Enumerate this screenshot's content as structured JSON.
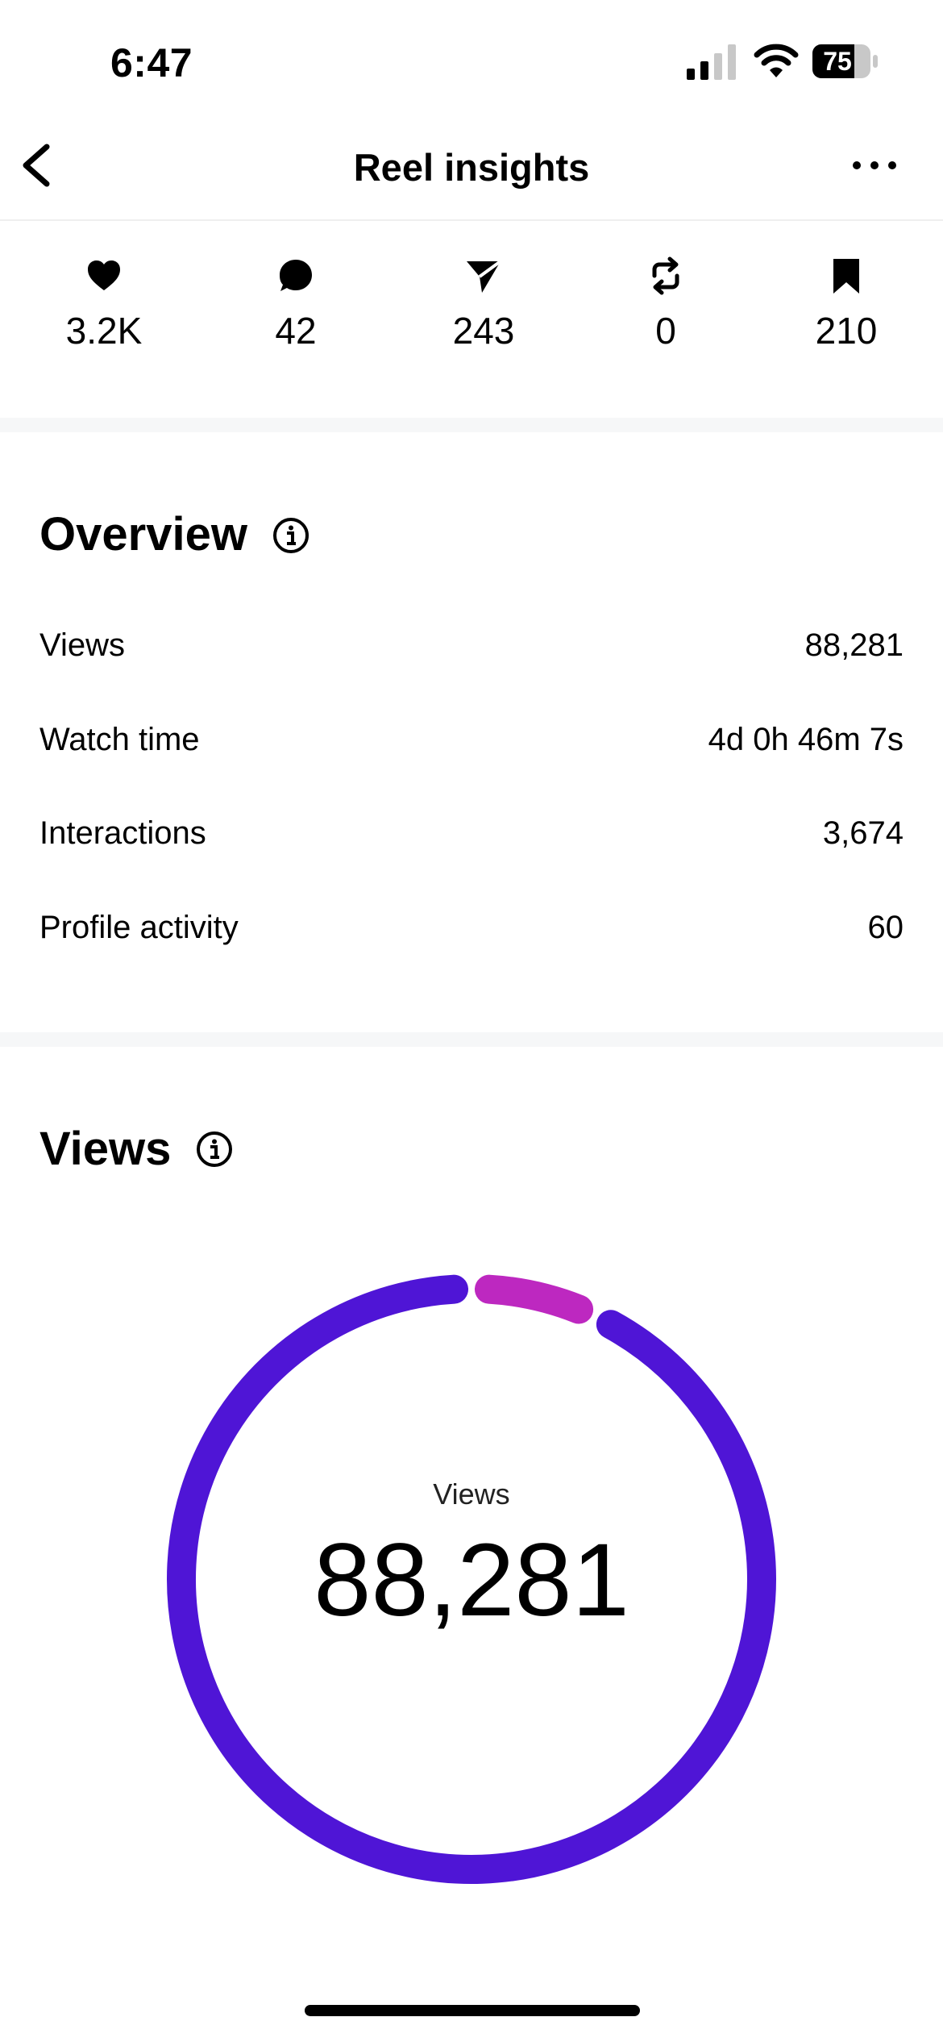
{
  "status_bar": {
    "time": "6:47",
    "battery": "75",
    "icons": [
      "signal-icon",
      "wifi-icon",
      "battery-icon"
    ]
  },
  "header": {
    "title": "Reel insights",
    "icons": [
      "back-chevron-icon",
      "more-icon"
    ]
  },
  "engagement": [
    {
      "icon": "heart-icon",
      "value": "3.2K"
    },
    {
      "icon": "comment-icon",
      "value": "42"
    },
    {
      "icon": "share-icon",
      "value": "243"
    },
    {
      "icon": "repost-icon",
      "value": "0"
    },
    {
      "icon": "save-icon",
      "value": "210"
    }
  ],
  "overview": {
    "title": "Overview",
    "rows": [
      {
        "label": "Views",
        "value": "88,281"
      },
      {
        "label": "Watch time",
        "value": "4d 0h 46m 7s"
      },
      {
        "label": "Interactions",
        "value": "3,674"
      },
      {
        "label": "Profile activity",
        "value": "60"
      }
    ]
  },
  "views_section": {
    "title": "Views",
    "donut_label": "Views",
    "donut_value": "88,281"
  },
  "chart_data": {
    "type": "pie",
    "total_label": "Views",
    "total_value": "88,281",
    "values": [
      93,
      7
    ],
    "colors": [
      "#4f15d6",
      "#bd28c0"
    ]
  },
  "colors": {
    "accent_primary": "#4f15d6",
    "accent_secondary": "#bd28c0",
    "text": "#000000",
    "divider": "#f6f7f8"
  }
}
